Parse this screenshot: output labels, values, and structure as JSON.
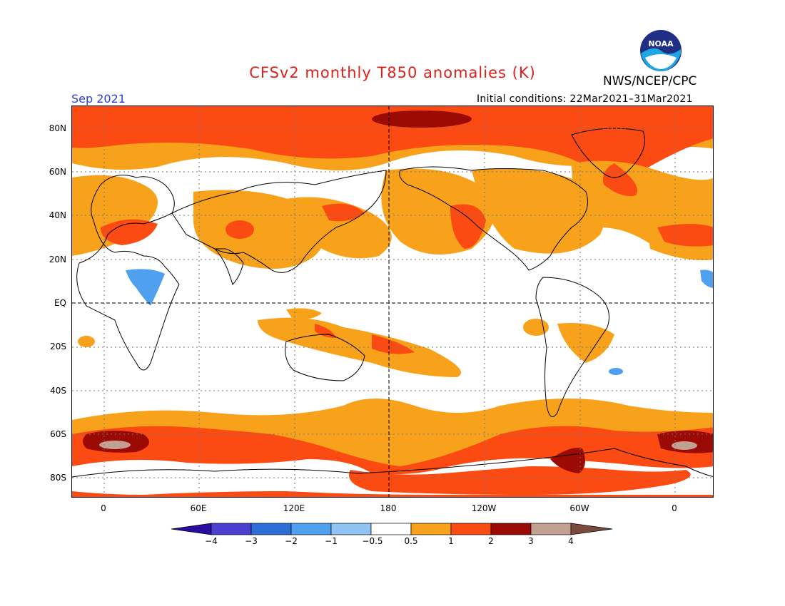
{
  "header": {
    "title": "CFSv2 monthly T850 anomalies (K)",
    "agency": "NWS/NCEP/CPC",
    "period": "Sep 2021",
    "initial_conditions": "Initial conditions: 22Mar2021–31Mar2021",
    "logo_text": "NOAA"
  },
  "map": {
    "lat_labels": [
      "80N",
      "60N",
      "40N",
      "20N",
      "EQ",
      "20S",
      "40S",
      "60S",
      "80S"
    ],
    "lon_labels": [
      "0",
      "60E",
      "120E",
      "180",
      "120W",
      "60W",
      "0"
    ],
    "colors": {
      "neg4": "#2a0da0",
      "neg3": "#4a3fd0",
      "neg2": "#2d6fd6",
      "neg1": "#4fa0ee",
      "neg05": "#8fc3f4",
      "zero": "#ffffff",
      "pos05": "#f7a21a",
      "pos1": "#fb4a12",
      "pos2": "#9c0a05",
      "pos3": "#c4a093",
      "pos4": "#7b4a3e",
      "land": "#000000"
    }
  },
  "colorbar": {
    "labels": [
      "−4",
      "−3",
      "−2",
      "−1",
      "−0.5",
      "0.5",
      "1",
      "2",
      "3",
      "4"
    ]
  }
}
